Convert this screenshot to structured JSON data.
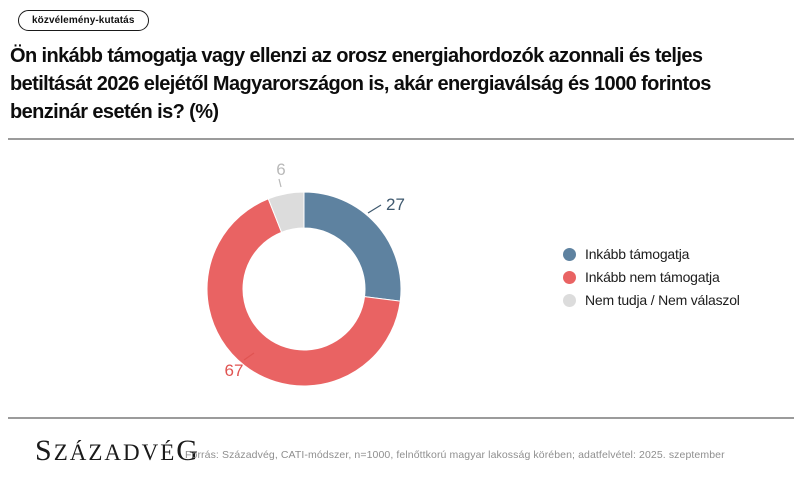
{
  "badge": {
    "label": "közvélemény-kutatás"
  },
  "title_lines": [
    "Ön inkább támogatja vagy ellenzi az orosz energiahordozók azonnali és teljes",
    "betiltását 2026 elejétől Magyarországon is, akár energiaválság és 1000 forintos",
    "benzinár esetén is? (%)"
  ],
  "chart_data": {
    "type": "pie",
    "subtype": "donut",
    "title": "Ön inkább támogatja vagy ellenzi az orosz energiahordozók azonnali és teljes betiltását 2026 elejétől Magyarországon is, akár energiaválság és 1000 forintos benzinár esetén is? (%)",
    "unit": "%",
    "categories": [
      "Inkább támogatja",
      "Inkább nem támogatja",
      "Nem tudja / Nem válaszol"
    ],
    "values": [
      27,
      67,
      6
    ],
    "colors": [
      "#5e82a0",
      "#e96363",
      "#dcdcdc"
    ],
    "label_colors": [
      "#3e586e",
      "#e05452",
      "#b9b9b9"
    ],
    "legend_position": "right",
    "start_angle_deg": 0,
    "direction": "clockwise"
  },
  "footer": {
    "logo": "SZÁZADVÉG",
    "source": "Forrás: Századvég, CATI-módszer, n=1000, felnőttkorú magyar lakosság körében; adatfelvétel: 2025. szeptember"
  }
}
